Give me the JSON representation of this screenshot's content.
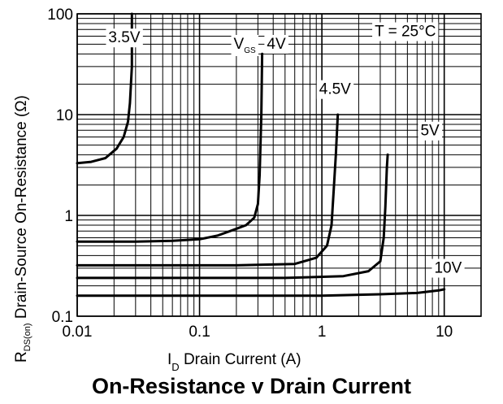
{
  "chart_data": {
    "type": "line",
    "title": "On-Resistance v Drain Current",
    "xlabel": {
      "symbol": "I",
      "subscript": "D",
      "text": "Drain Current (A)"
    },
    "ylabel": {
      "symbol": "R",
      "subscript": "DS(on)",
      "text": "Drain-Source On-Resistance (Ω)"
    },
    "xscale": "log",
    "yscale": "log",
    "xlim": [
      0.01,
      20
    ],
    "ylim": [
      0.1,
      100
    ],
    "grid": true,
    "x_ticks": [
      {
        "value": 0.01,
        "label": "0.01"
      },
      {
        "value": 0.1,
        "label": "0.1"
      },
      {
        "value": 1,
        "label": "1"
      },
      {
        "value": 10,
        "label": "10"
      }
    ],
    "y_ticks": [
      {
        "value": 0.1,
        "label": "0.1"
      },
      {
        "value": 1,
        "label": "1"
      },
      {
        "value": 10,
        "label": "10"
      },
      {
        "value": 100,
        "label": "100"
      }
    ],
    "annotation": "T = 25°C",
    "family_label": {
      "symbol": "V",
      "subscript": "GS"
    },
    "series": [
      {
        "name": "3.5V",
        "points": [
          [
            0.01,
            3.3
          ],
          [
            0.013,
            3.4
          ],
          [
            0.017,
            3.7
          ],
          [
            0.021,
            4.6
          ],
          [
            0.024,
            6.0
          ],
          [
            0.026,
            8.5
          ],
          [
            0.027,
            13
          ],
          [
            0.028,
            30
          ],
          [
            0.028,
            100
          ]
        ]
      },
      {
        "name": "4V",
        "points": [
          [
            0.01,
            0.55
          ],
          [
            0.03,
            0.55
          ],
          [
            0.06,
            0.56
          ],
          [
            0.1,
            0.58
          ],
          [
            0.14,
            0.63
          ],
          [
            0.19,
            0.72
          ],
          [
            0.24,
            0.8
          ],
          [
            0.28,
            0.95
          ],
          [
            0.3,
            1.3
          ],
          [
            0.31,
            2.5
          ],
          [
            0.32,
            10
          ],
          [
            0.325,
            40
          ]
        ]
      },
      {
        "name": "4.5V",
        "points": [
          [
            0.01,
            0.32
          ],
          [
            0.2,
            0.32
          ],
          [
            0.6,
            0.33
          ],
          [
            0.9,
            0.38
          ],
          [
            1.1,
            0.5
          ],
          [
            1.2,
            0.8
          ],
          [
            1.25,
            1.8
          ],
          [
            1.3,
            4
          ],
          [
            1.35,
            10
          ]
        ]
      },
      {
        "name": "5V",
        "points": [
          [
            0.01,
            0.24
          ],
          [
            0.5,
            0.24
          ],
          [
            1.5,
            0.25
          ],
          [
            2.4,
            0.28
          ],
          [
            3.0,
            0.35
          ],
          [
            3.2,
            0.6
          ],
          [
            3.3,
            1.2
          ],
          [
            3.4,
            3
          ],
          [
            3.45,
            4
          ]
        ]
      },
      {
        "name": "10V",
        "points": [
          [
            0.01,
            0.16
          ],
          [
            1,
            0.16
          ],
          [
            3,
            0.165
          ],
          [
            6,
            0.17
          ],
          [
            9,
            0.18
          ],
          [
            10,
            0.185
          ]
        ]
      }
    ]
  }
}
